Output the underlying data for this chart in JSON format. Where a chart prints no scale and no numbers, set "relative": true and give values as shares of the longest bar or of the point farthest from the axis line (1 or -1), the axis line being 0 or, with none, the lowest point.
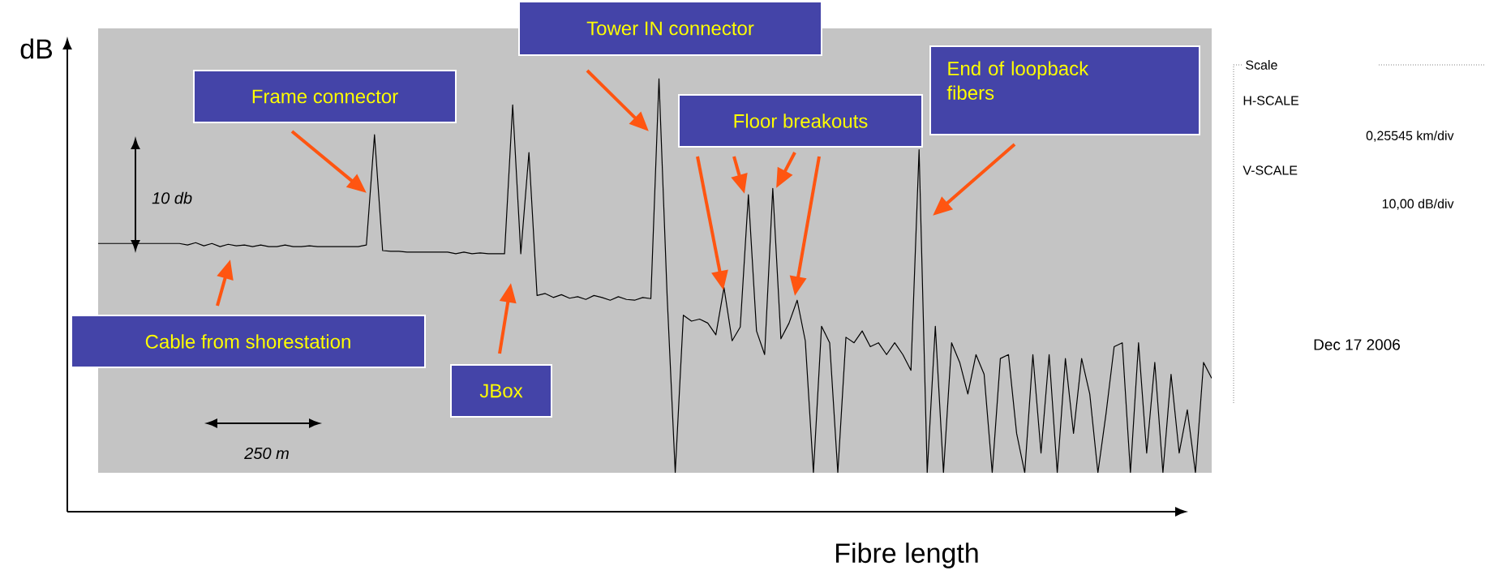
{
  "chart_data": {
    "type": "line",
    "relative": true,
    "xlabel": "Fibre length",
    "ylabel": "dB",
    "color": "#000000",
    "categories": [
      null,
      null,
      null,
      null,
      null,
      null,
      null,
      null,
      null,
      null,
      null,
      null,
      null,
      null,
      null,
      null,
      null,
      null,
      null,
      null,
      null,
      null,
      null,
      null,
      null,
      null,
      null,
      null,
      null,
      null,
      null,
      null,
      null,
      null,
      null,
      null,
      null,
      null,
      null,
      null,
      null,
      null,
      null,
      null,
      null,
      null,
      null,
      null,
      null,
      null,
      null,
      null,
      null,
      null,
      null,
      null,
      null,
      null,
      null,
      null,
      null,
      null,
      null,
      null,
      null,
      null,
      null,
      null,
      null,
      null,
      null,
      null,
      null,
      null,
      null,
      null,
      null,
      null,
      null,
      null,
      null,
      null,
      null,
      null,
      null,
      null,
      null,
      null,
      null,
      null,
      null,
      null,
      null,
      null,
      null,
      null,
      null,
      null,
      null,
      null,
      null,
      null,
      null,
      null,
      null,
      null,
      null,
      null,
      null,
      null,
      null,
      null,
      null,
      null,
      null,
      null,
      null,
      null,
      null,
      null,
      null,
      null,
      null,
      null,
      null,
      null,
      null,
      null,
      null,
      null,
      null,
      null,
      null,
      null,
      null,
      null,
      null,
      null
    ],
    "values": [
      0.582,
      0.582,
      0.582,
      0.582,
      0.582,
      0.582,
      0.582,
      0.582,
      0.582,
      0.582,
      0.582,
      0.578,
      0.584,
      0.576,
      0.582,
      0.574,
      0.58,
      0.576,
      0.578,
      0.574,
      0.578,
      0.574,
      0.574,
      0.578,
      0.574,
      0.574,
      0.576,
      0.574,
      0.574,
      0.574,
      0.574,
      0.574,
      0.574,
      0.578,
      0.858,
      0.564,
      0.562,
      0.562,
      0.56,
      0.56,
      0.56,
      0.56,
      0.56,
      0.56,
      0.556,
      0.56,
      0.556,
      0.558,
      0.556,
      0.556,
      0.556,
      0.934,
      0.556,
      0.813,
      0.45,
      0.455,
      0.445,
      0.452,
      0.443,
      0.447,
      0.44,
      0.45,
      0.445,
      0.438,
      0.447,
      0.44,
      0.438,
      0.445,
      0.442,
      1.0,
      0.45,
      0,
      0.4,
      0.385,
      0.39,
      0.38,
      0.35,
      0.47,
      0.335,
      0.37,
      0.706,
      0.36,
      0.3,
      0.722,
      0.34,
      0.38,
      0.438,
      0.335,
      0,
      0.372,
      0.33,
      0,
      0.344,
      0.33,
      0.36,
      0.32,
      0.33,
      0.3,
      0.33,
      0.3,
      0.26,
      0.82,
      0,
      0.372,
      0,
      0.33,
      0.28,
      0.2,
      0.3,
      0.25,
      0,
      0.29,
      0.3,
      0.1,
      0,
      0.3,
      0.05,
      0.3,
      0,
      0.29,
      0.1,
      0.29,
      0.2,
      0,
      0.15,
      0.32,
      0.33,
      0,
      0.33,
      0.05,
      0.28,
      0,
      0.25,
      0.05,
      0.16,
      0,
      0.28,
      0.24
    ],
    "annotations": [
      "Cable from shorestation",
      "Frame connector",
      "JBox",
      "Tower IN connector",
      "Floor breakouts",
      "End of loopback fibers",
      "10 db",
      "250 m",
      "Scale",
      "H-SCALE",
      "0,25545 km/div",
      "V-SCALE",
      "10,00 dB/div",
      "Dec 17 2006"
    ]
  }
}
